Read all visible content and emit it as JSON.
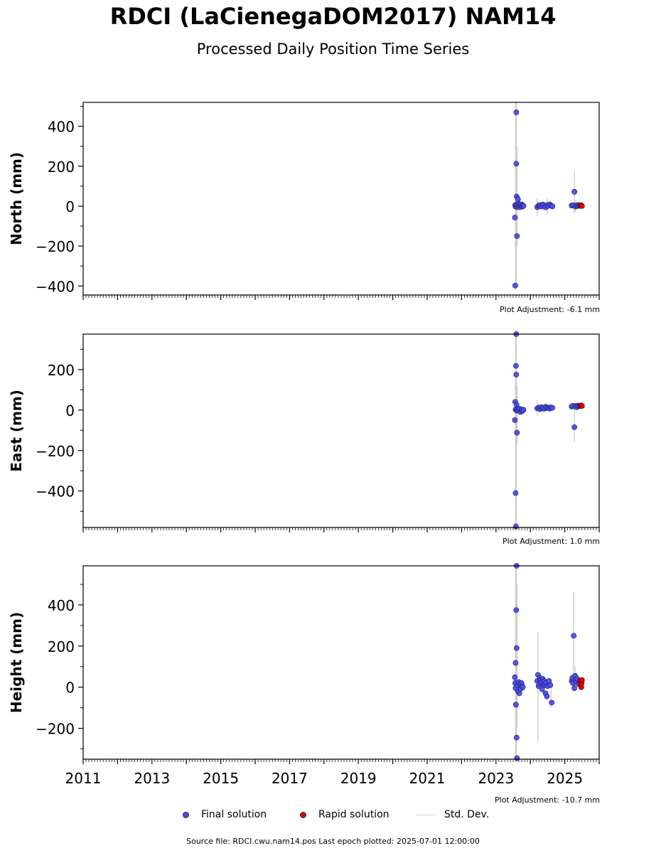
{
  "title": "RDCI (LaCienegaDOM2017) NAM14",
  "subtitle": "Processed Daily Position Time Series",
  "legend": {
    "final": "Final solution",
    "rapid": "Rapid solution",
    "std": "Std. Dev."
  },
  "source_text": "Source file: RDCI.cwu.nam14.pos  Last epoch plotted: 2025-07-01 12:00:00",
  "colors": {
    "final": "#4b4bef",
    "rapid": "#e00000",
    "std": "#c8c8c8"
  },
  "chart_data": [
    {
      "type": "scatter",
      "ylabel": "North (mm)",
      "adjustment": "Plot Adjustment: -6.1 mm",
      "xlim": [
        2011.0,
        2026.0
      ],
      "ylim": [
        -445,
        520
      ],
      "yticks": [
        -400,
        -200,
        0,
        200,
        400
      ],
      "yticklabels": [
        "−400",
        "−200",
        "0",
        "200",
        "400"
      ],
      "final": [
        [
          2023.56,
          5
        ],
        [
          2023.57,
          -2
        ],
        [
          2023.58,
          8
        ],
        [
          2023.59,
          470
        ],
        [
          2023.59,
          213
        ],
        [
          2023.6,
          48
        ],
        [
          2023.6,
          -4
        ],
        [
          2023.61,
          -150
        ],
        [
          2023.55,
          -57
        ],
        [
          2023.56,
          -398
        ],
        [
          2023.62,
          3
        ],
        [
          2023.64,
          35
        ],
        [
          2023.66,
          12
        ],
        [
          2023.68,
          -5
        ],
        [
          2023.7,
          6
        ],
        [
          2023.72,
          2
        ],
        [
          2023.74,
          9
        ],
        [
          2023.76,
          -3
        ],
        [
          2023.78,
          4
        ],
        [
          2023.8,
          1
        ],
        [
          2024.2,
          -5
        ],
        [
          2024.24,
          3
        ],
        [
          2024.28,
          6
        ],
        [
          2024.32,
          -2
        ],
        [
          2024.36,
          8
        ],
        [
          2024.4,
          2
        ],
        [
          2024.44,
          -6
        ],
        [
          2024.48,
          5
        ],
        [
          2024.52,
          1
        ],
        [
          2024.56,
          9
        ],
        [
          2024.6,
          3
        ],
        [
          2024.64,
          -1
        ],
        [
          2025.2,
          3
        ],
        [
          2025.24,
          5
        ],
        [
          2025.28,
          72
        ],
        [
          2025.31,
          -2
        ],
        [
          2025.34,
          4
        ],
        [
          2025.37,
          1
        ],
        [
          2025.4,
          6
        ],
        [
          2025.43,
          2
        ]
      ],
      "rapid": [
        [
          2025.46,
          2
        ],
        [
          2025.48,
          4
        ],
        [
          2025.5,
          1
        ]
      ],
      "errbars": [
        [
          2023.57,
          -420,
          520
        ],
        [
          2023.59,
          -400,
          520
        ],
        [
          2023.61,
          -200,
          300
        ],
        [
          2024.2,
          -50,
          40
        ],
        [
          2024.5,
          -40,
          40
        ],
        [
          2025.28,
          -35,
          178
        ],
        [
          2025.32,
          -30,
          30
        ]
      ]
    },
    {
      "type": "scatter",
      "ylabel": "East (mm)",
      "adjustment": "Plot Adjustment: 1.0 mm",
      "xlim": [
        2011.0,
        2026.0
      ],
      "ylim": [
        -580,
        375
      ],
      "yticks": [
        -400,
        -200,
        0,
        200
      ],
      "yticklabels": [
        "−400",
        "−200",
        "0",
        "200"
      ],
      "final": [
        [
          2023.59,
          375
        ],
        [
          2023.58,
          218
        ],
        [
          2023.59,
          175
        ],
        [
          2023.56,
          40
        ],
        [
          2023.57,
          2
        ],
        [
          2023.6,
          -3
        ],
        [
          2023.6,
          25
        ],
        [
          2023.55,
          -50
        ],
        [
          2023.61,
          -112
        ],
        [
          2023.57,
          -410
        ],
        [
          2023.58,
          -575
        ],
        [
          2023.62,
          4
        ],
        [
          2023.65,
          -2
        ],
        [
          2023.68,
          6
        ],
        [
          2023.71,
          -10
        ],
        [
          2023.74,
          3
        ],
        [
          2023.77,
          -4
        ],
        [
          2023.8,
          1
        ],
        [
          2024.2,
          8
        ],
        [
          2024.24,
          12
        ],
        [
          2024.28,
          4
        ],
        [
          2024.32,
          14
        ],
        [
          2024.36,
          9
        ],
        [
          2024.4,
          6
        ],
        [
          2024.44,
          16
        ],
        [
          2024.48,
          10
        ],
        [
          2024.52,
          12
        ],
        [
          2024.56,
          7
        ],
        [
          2024.6,
          13
        ],
        [
          2024.64,
          11
        ],
        [
          2025.2,
          17
        ],
        [
          2025.24,
          21
        ],
        [
          2025.28,
          -85
        ],
        [
          2025.31,
          19
        ],
        [
          2025.34,
          14
        ],
        [
          2025.37,
          22
        ],
        [
          2025.4,
          18
        ],
        [
          2025.43,
          20
        ]
      ],
      "rapid": [
        [
          2025.46,
          21
        ],
        [
          2025.48,
          23
        ],
        [
          2025.5,
          20
        ]
      ],
      "errbars": [
        [
          2023.57,
          -580,
          375
        ],
        [
          2023.59,
          -580,
          375
        ],
        [
          2023.61,
          -170,
          120
        ],
        [
          2024.2,
          -30,
          50
        ],
        [
          2025.28,
          -155,
          30
        ]
      ]
    },
    {
      "type": "scatter",
      "ylabel": "Height (mm)",
      "adjustment": "Plot Adjustment: -10.7 mm",
      "xlim": [
        2011.0,
        2026.0
      ],
      "ylim": [
        -350,
        590
      ],
      "yticks": [
        -200,
        0,
        200,
        400
      ],
      "yticklabels": [
        "−200",
        "0",
        "200",
        "400"
      ],
      "final": [
        [
          2023.6,
          590
        ],
        [
          2023.59,
          375
        ],
        [
          2023.6,
          190
        ],
        [
          2023.57,
          118
        ],
        [
          2023.55,
          48
        ],
        [
          2023.56,
          20
        ],
        [
          2023.57,
          -5
        ],
        [
          2023.58,
          -85
        ],
        [
          2023.6,
          -245
        ],
        [
          2023.61,
          -345
        ],
        [
          2023.62,
          10
        ],
        [
          2023.64,
          -20
        ],
        [
          2023.66,
          25
        ],
        [
          2023.68,
          -30
        ],
        [
          2023.7,
          15
        ],
        [
          2023.72,
          -8
        ],
        [
          2023.74,
          20
        ],
        [
          2023.76,
          5
        ],
        [
          2023.78,
          0
        ],
        [
          2024.2,
          30
        ],
        [
          2024.22,
          60
        ],
        [
          2024.24,
          5
        ],
        [
          2024.26,
          20
        ],
        [
          2024.28,
          45
        ],
        [
          2024.3,
          35
        ],
        [
          2024.32,
          25
        ],
        [
          2024.34,
          -10
        ],
        [
          2024.36,
          40
        ],
        [
          2024.38,
          15
        ],
        [
          2024.4,
          30
        ],
        [
          2024.42,
          10
        ],
        [
          2024.44,
          -30
        ],
        [
          2024.46,
          20
        ],
        [
          2024.48,
          -45
        ],
        [
          2024.5,
          5
        ],
        [
          2024.54,
          30
        ],
        [
          2024.58,
          10
        ],
        [
          2024.62,
          -75
        ],
        [
          2025.2,
          30
        ],
        [
          2025.22,
          45
        ],
        [
          2025.24,
          20
        ],
        [
          2025.26,
          250
        ],
        [
          2025.28,
          -5
        ],
        [
          2025.3,
          55
        ],
        [
          2025.32,
          35
        ],
        [
          2025.34,
          25
        ],
        [
          2025.37,
          40
        ],
        [
          2025.4,
          15
        ]
      ],
      "rapid": [
        [
          2025.44,
          30
        ],
        [
          2025.46,
          10
        ],
        [
          2025.47,
          25
        ],
        [
          2025.48,
          0
        ],
        [
          2025.49,
          20
        ],
        [
          2025.5,
          35
        ]
      ],
      "errbars": [
        [
          2023.57,
          -350,
          590
        ],
        [
          2023.59,
          -350,
          590
        ],
        [
          2023.61,
          -200,
          500
        ],
        [
          2024.22,
          -270,
          270
        ],
        [
          2024.6,
          -100,
          40
        ],
        [
          2025.26,
          40,
          460
        ],
        [
          2025.3,
          -20,
          100
        ]
      ]
    }
  ],
  "x_ticks": [
    2011,
    2013,
    2015,
    2017,
    2019,
    2021,
    2023,
    2025
  ],
  "x_ticklabels": [
    "2011",
    "2013",
    "2015",
    "2017",
    "2019",
    "2021",
    "2023",
    "2025"
  ]
}
